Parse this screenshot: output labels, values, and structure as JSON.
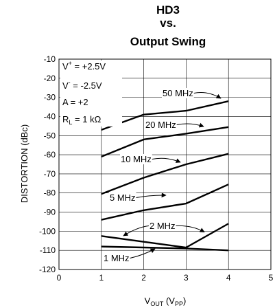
{
  "chart_data": {
    "type": "line",
    "title_lines": [
      "HD3",
      "vs.",
      "Output Swing"
    ],
    "xlabel": {
      "main": "V",
      "sub": "OUT",
      "rest": " (V",
      "sub2": "PP",
      "end": ")"
    },
    "ylabel": "DISTORTION (dBc)",
    "xlim": [
      0,
      5
    ],
    "ylim": [
      -120,
      -10
    ],
    "x_ticks": [
      0,
      1,
      2,
      3,
      4,
      5
    ],
    "y_ticks": [
      -10,
      -20,
      -30,
      -40,
      -50,
      -60,
      -70,
      -80,
      -90,
      -100,
      -110,
      -120
    ],
    "grid": true,
    "conditions": [
      {
        "base": "V",
        "sup": "+",
        "rest": " = +2.5V"
      },
      {
        "base": "V",
        "sup": "-",
        "rest": " = -2.5V"
      },
      {
        "base": "A = +2"
      },
      {
        "base": "R",
        "sub": "L",
        "rest": " = 1 kΩ"
      }
    ],
    "series": [
      {
        "name": "50 MHz",
        "x": [
          1,
          2,
          3,
          4
        ],
        "y": [
          -47,
          -39,
          -37,
          -32
        ]
      },
      {
        "name": "20 MHz",
        "x": [
          1,
          2,
          3,
          4
        ],
        "y": [
          -61,
          -52,
          -49,
          -45.5
        ]
      },
      {
        "name": "10 MHz",
        "x": [
          1,
          2,
          3,
          4
        ],
        "y": [
          -80.5,
          -72,
          -65,
          -59.5
        ]
      },
      {
        "name": "5 MHz",
        "x": [
          1,
          2,
          3,
          4
        ],
        "y": [
          -94,
          -89,
          -85.5,
          -75.5
        ]
      },
      {
        "name": "2 MHz",
        "x": [
          1,
          2,
          3,
          4
        ],
        "y": [
          -102.5,
          -105.5,
          -108.5,
          -96
        ]
      },
      {
        "name": "1 MHz",
        "x": [
          1,
          2,
          3,
          4
        ],
        "y": [
          -108,
          -108.5,
          -109,
          -110
        ]
      }
    ]
  }
}
